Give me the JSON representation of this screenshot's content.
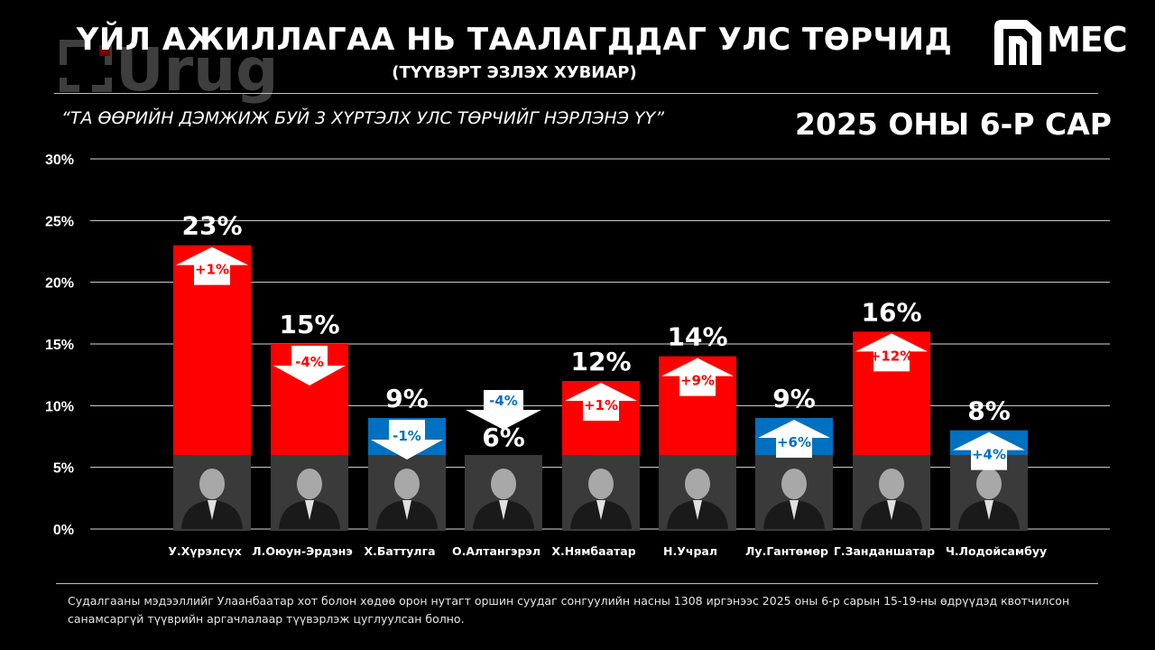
{
  "header": {
    "title": "ҮЙЛ АЖИЛЛАГАА НЬ ТААЛАГДДАГ УЛС ТӨРЧИД",
    "subtitle": "(ТҮҮВЭРТ ЭЗЛЭХ ХУВИАР)",
    "question": "“ТА ӨӨРИЙН ДЭМЖИЖ БУЙ 3 ХҮРТЭЛХ УЛС ТӨРЧИЙГ НЭРЛЭНЭ ҮҮ”",
    "period": "2025 ОНЫ 6-Р САР",
    "watermark": "Urug",
    "brand": "MEC"
  },
  "colors": {
    "red": "#ff0000",
    "blue": "#0070c0",
    "background": "#000000",
    "white": "#ffffff"
  },
  "chart_data": {
    "type": "bar",
    "title": "ҮЙЛ АЖИЛЛАГАА НЬ ТААЛАГДДАГ УЛС ТӨРЧИД",
    "subtitle": "(ТҮҮВЭРТ ЭЗЛЭХ ХУВИАР)",
    "xlabel": "",
    "ylabel": "",
    "ylim": [
      0,
      30
    ],
    "yticks": [
      0,
      5,
      10,
      15,
      20,
      25,
      30
    ],
    "ytick_labels": [
      "0%",
      "5%",
      "10%",
      "15%",
      "20%",
      "25%",
      "30%"
    ],
    "grid": true,
    "categories": [
      "У.Хүрэлсүх",
      "Л.Оюун-Эрдэнэ",
      "Х.Баттулга",
      "О.Алтангэрэл",
      "Х.Нямбаатар",
      "Н.Учрал",
      "Лу.Гантөмөр",
      "Г.Занданшатар",
      "Ч.Лодойсамбуу"
    ],
    "values": [
      23,
      15,
      9,
      6,
      12,
      14,
      9,
      16,
      8
    ],
    "value_labels": [
      "23%",
      "15%",
      "9%",
      "6%",
      "12%",
      "14%",
      "9%",
      "16%",
      "8%"
    ],
    "bar_colors": [
      "#ff0000",
      "#ff0000",
      "#0070c0",
      "none",
      "#ff0000",
      "#ff0000",
      "#0070c0",
      "#ff0000",
      "#0070c0"
    ],
    "changes": [
      1,
      -4,
      -1,
      -4,
      1,
      9,
      6,
      12,
      4
    ],
    "change_labels": [
      "+1%",
      "-4%",
      "-1%",
      "-4%",
      "+1%",
      "+9%",
      "+6%",
      "+12%",
      "+4%"
    ],
    "change_text_colors": [
      "#ff0000",
      "#ff0000",
      "#0070c0",
      "#0070c0",
      "#ff0000",
      "#ff0000",
      "#0070c0",
      "#ff0000",
      "#0070c0"
    ]
  },
  "footnote": "Судалгааны мэдээллийг Улаанбаатар хот болон хөдөө орон нутагт оршин суудаг сонгуулийн насны 1308 иргэнээс 2025 оны 6-р сарын 15-19-ны өдрүүдэд квотчилсон санамсаргүй түүврийн аргачлалаар түүвэрлэж цуглуулсан болно."
}
